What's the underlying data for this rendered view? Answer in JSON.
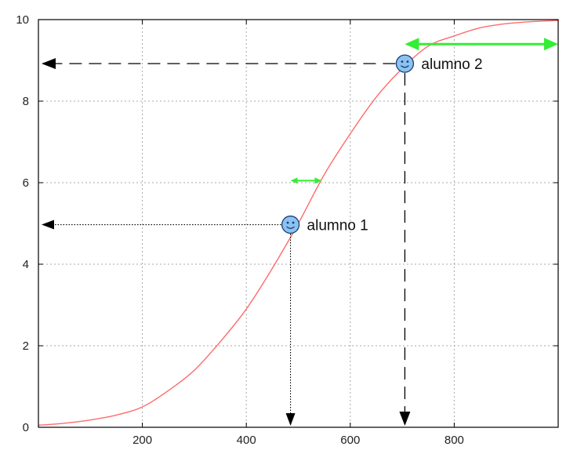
{
  "chart_data": {
    "type": "line",
    "title": "",
    "xlabel": "",
    "ylabel": "",
    "xlim": [
      0,
      1000
    ],
    "ylim": [
      0,
      10
    ],
    "xticks": [
      200,
      400,
      600,
      800
    ],
    "yticks": [
      0,
      2,
      4,
      6,
      8,
      10
    ],
    "grid": true,
    "series": [
      {
        "color": "#ff6b6b",
        "x": [
          0,
          50,
          100,
          150,
          200,
          250,
          300,
          350,
          400,
          450,
          500,
          550,
          600,
          650,
          700,
          750,
          800,
          850,
          900,
          950,
          1000
        ],
        "y": [
          0.05,
          0.1,
          0.18,
          0.3,
          0.5,
          0.9,
          1.4,
          2.1,
          2.9,
          3.9,
          5.0,
          6.2,
          7.2,
          8.1,
          8.8,
          9.35,
          9.6,
          9.8,
          9.9,
          9.95,
          9.98
        ]
      }
    ],
    "annotations": [
      {
        "label": "alumno 1",
        "x": 485,
        "y": 4.97,
        "line_style": "dotted",
        "ability_range": [
          485,
          545
        ],
        "ability_range_y": 6.05,
        "icon": "smiley-icon"
      },
      {
        "label": "alumno 2",
        "x": 705,
        "y": 8.92,
        "line_style": "dashed",
        "ability_range": [
          705,
          1000
        ],
        "ability_range_y": 9.4,
        "icon": "smiley-icon"
      }
    ],
    "colors": {
      "curve": "#ff6b6b",
      "range_arrow": "#33ee33",
      "marker_fill": "#8cc2f0",
      "guide": "#000000",
      "grid": "#a8a8a8"
    }
  }
}
